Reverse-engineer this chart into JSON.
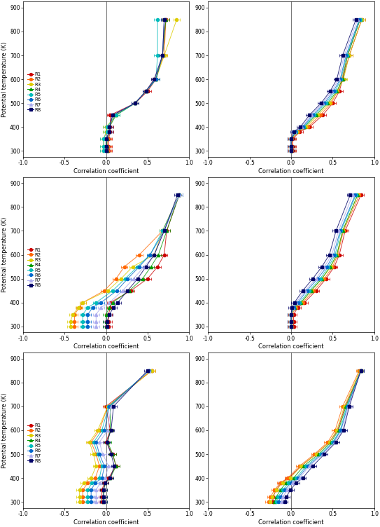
{
  "fig_width": 5.43,
  "fig_height": 7.52,
  "dpi": 100,
  "nrows": 3,
  "ncols": 2,
  "xlim": [
    -1.0,
    1.0
  ],
  "ylim": [
    275,
    925
  ],
  "yticks": [
    300,
    400,
    500,
    600,
    700,
    800,
    900
  ],
  "xticks": [
    -1.0,
    -0.5,
    0.0,
    0.5,
    1.0
  ],
  "xtick_labels": [
    "-1.0",
    "-0.5",
    "0.0",
    "0.5",
    "1.0"
  ],
  "xlabel": "Correlation coefficient",
  "ylabel": "Potential temperature (K)",
  "pot_temps": [
    300,
    320,
    350,
    380,
    400,
    450,
    500,
    550,
    600,
    700,
    850
  ],
  "series_names": [
    "R1",
    "R2",
    "R3",
    "R4",
    "R5",
    "R6",
    "R7",
    "R8"
  ],
  "series_colors": [
    "#cc0000",
    "#ff6600",
    "#ddcc00",
    "#009900",
    "#00bbbb",
    "#0066cc",
    "#aaaaee",
    "#000066"
  ],
  "marker_styles": [
    "o",
    "o",
    "o",
    "^",
    "o",
    "o",
    "^",
    "s"
  ],
  "background_color": "#ffffff",
  "linewidth": 0.7,
  "markersize": 3.0,
  "elinewidth": 0.5,
  "capsize": 1.2,
  "tick_fontsize": 5.5,
  "label_fontsize": 6.0,
  "legend_fontsize": 5.0,
  "data": {
    "panel_00": {
      "series": {
        "R1": [
          0.03,
          0.03,
          0.03,
          0.05,
          0.05,
          0.05,
          0.35,
          0.5,
          0.6,
          0.68,
          0.72
        ],
        "R2": [
          0.02,
          0.02,
          0.02,
          0.04,
          0.04,
          0.1,
          0.35,
          0.48,
          0.58,
          0.7,
          0.72
        ],
        "R3": [
          -0.03,
          -0.03,
          -0.03,
          0.0,
          0.0,
          0.12,
          0.35,
          0.48,
          0.6,
          0.7,
          0.85
        ],
        "R4": [
          0.01,
          0.01,
          0.01,
          0.04,
          0.04,
          0.12,
          0.35,
          0.48,
          0.6,
          0.68,
          0.72
        ],
        "R5": [
          -0.03,
          -0.03,
          -0.03,
          0.01,
          0.01,
          0.12,
          0.35,
          0.48,
          0.6,
          0.62,
          0.62
        ],
        "R6": [
          0.0,
          0.0,
          0.0,
          0.04,
          0.04,
          0.08,
          0.35,
          0.48,
          0.6,
          0.68,
          0.7
        ],
        "R7": [
          0.0,
          0.0,
          0.0,
          0.04,
          0.04,
          0.08,
          0.35,
          0.48,
          0.58,
          0.68,
          0.7
        ],
        "R8": [
          0.0,
          0.0,
          0.0,
          0.04,
          0.04,
          0.08,
          0.35,
          0.48,
          0.58,
          0.68,
          0.7
        ]
      }
    },
    "panel_01": {
      "series": {
        "R1": [
          0.02,
          0.02,
          0.02,
          0.1,
          0.22,
          0.38,
          0.5,
          0.58,
          0.62,
          0.7,
          0.85
        ],
        "R2": [
          0.01,
          0.01,
          0.01,
          0.08,
          0.2,
          0.35,
          0.48,
          0.56,
          0.61,
          0.68,
          0.83
        ],
        "R3": [
          0.0,
          0.0,
          0.0,
          0.07,
          0.18,
          0.32,
          0.46,
          0.56,
          0.63,
          0.7,
          0.85
        ],
        "R4": [
          0.0,
          0.0,
          0.0,
          0.06,
          0.16,
          0.3,
          0.44,
          0.55,
          0.62,
          0.68,
          0.83
        ],
        "R5": [
          0.0,
          0.0,
          0.0,
          0.06,
          0.15,
          0.28,
          0.42,
          0.53,
          0.6,
          0.67,
          0.83
        ],
        "R6": [
          0.0,
          0.0,
          0.0,
          0.05,
          0.14,
          0.26,
          0.4,
          0.51,
          0.59,
          0.66,
          0.82
        ],
        "R7": [
          0.0,
          0.0,
          0.0,
          0.04,
          0.13,
          0.24,
          0.38,
          0.49,
          0.57,
          0.64,
          0.8
        ],
        "R8": [
          0.0,
          0.0,
          0.0,
          0.03,
          0.11,
          0.22,
          0.36,
          0.47,
          0.55,
          0.62,
          0.78
        ]
      }
    },
    "panel_10": {
      "series": {
        "R1": [
          0.03,
          0.03,
          0.03,
          0.05,
          0.05,
          0.3,
          0.5,
          0.62,
          0.7,
          0.73,
          0.88
        ],
        "R2": [
          -0.38,
          -0.38,
          -0.38,
          -0.32,
          -0.28,
          -0.02,
          0.12,
          0.22,
          0.4,
          0.68,
          0.88
        ],
        "R3": [
          -0.43,
          -0.43,
          -0.4,
          -0.33,
          -0.28,
          0.02,
          0.18,
          0.32,
          0.58,
          0.68,
          0.88
        ],
        "R4": [
          0.0,
          0.0,
          0.0,
          0.04,
          0.08,
          0.28,
          0.44,
          0.54,
          0.63,
          0.73,
          0.88
        ],
        "R5": [
          -0.28,
          -0.28,
          -0.28,
          -0.22,
          -0.12,
          0.08,
          0.23,
          0.38,
          0.53,
          0.68,
          0.88
        ],
        "R6": [
          -0.22,
          -0.22,
          -0.22,
          -0.16,
          -0.06,
          0.13,
          0.26,
          0.4,
          0.53,
          0.7,
          0.88
        ],
        "R7": [
          -0.12,
          -0.12,
          -0.12,
          -0.06,
          0.04,
          0.2,
          0.33,
          0.46,
          0.58,
          0.7,
          0.88
        ],
        "R8": [
          0.01,
          0.01,
          0.04,
          0.09,
          0.14,
          0.26,
          0.38,
          0.48,
          0.58,
          0.7,
          0.86
        ]
      }
    },
    "panel_11": {
      "series": {
        "R1": [
          0.03,
          0.03,
          0.03,
          0.08,
          0.16,
          0.3,
          0.42,
          0.52,
          0.58,
          0.65,
          0.84
        ],
        "R2": [
          0.01,
          0.01,
          0.01,
          0.06,
          0.14,
          0.27,
          0.4,
          0.5,
          0.56,
          0.63,
          0.82
        ],
        "R3": [
          0.0,
          0.0,
          0.0,
          0.04,
          0.12,
          0.24,
          0.37,
          0.48,
          0.55,
          0.62,
          0.8
        ],
        "R4": [
          0.0,
          0.0,
          0.0,
          0.04,
          0.12,
          0.24,
          0.37,
          0.47,
          0.55,
          0.62,
          0.8
        ],
        "R5": [
          0.0,
          0.0,
          0.0,
          0.03,
          0.1,
          0.22,
          0.35,
          0.45,
          0.53,
          0.6,
          0.78
        ],
        "R6": [
          0.0,
          0.0,
          0.0,
          0.03,
          0.08,
          0.19,
          0.32,
          0.43,
          0.51,
          0.59,
          0.77
        ],
        "R7": [
          0.0,
          0.0,
          0.0,
          0.02,
          0.06,
          0.17,
          0.3,
          0.4,
          0.49,
          0.57,
          0.74
        ],
        "R8": [
          0.0,
          0.0,
          0.0,
          0.01,
          0.04,
          0.14,
          0.26,
          0.37,
          0.46,
          0.54,
          0.71
        ]
      }
    },
    "panel_20": {
      "series": {
        "R1": [
          -0.05,
          -0.05,
          -0.05,
          -0.02,
          0.03,
          0.12,
          0.08,
          0.0,
          0.05,
          0.0,
          0.55
        ],
        "R2": [
          -0.28,
          -0.28,
          -0.28,
          -0.22,
          -0.13,
          -0.08,
          -0.12,
          -0.18,
          -0.08,
          0.02,
          0.55
        ],
        "R3": [
          -0.32,
          -0.32,
          -0.32,
          -0.27,
          -0.18,
          -0.12,
          -0.15,
          -0.2,
          -0.1,
          0.02,
          0.55
        ],
        "R4": [
          -0.03,
          -0.03,
          -0.03,
          -0.01,
          0.05,
          0.12,
          0.08,
          0.02,
          0.05,
          0.05,
          0.52
        ],
        "R5": [
          -0.22,
          -0.22,
          -0.22,
          -0.17,
          -0.08,
          -0.05,
          -0.1,
          -0.15,
          -0.05,
          0.03,
          0.52
        ],
        "R6": [
          -0.18,
          -0.18,
          -0.18,
          -0.13,
          -0.05,
          -0.02,
          -0.08,
          -0.12,
          -0.02,
          0.04,
          0.52
        ],
        "R7": [
          -0.12,
          -0.12,
          -0.12,
          -0.07,
          -0.01,
          0.03,
          -0.04,
          -0.08,
          0.02,
          0.06,
          0.52
        ],
        "R8": [
          -0.03,
          -0.03,
          -0.03,
          -0.01,
          0.05,
          0.1,
          0.06,
          0.01,
          0.06,
          0.09,
          0.5
        ]
      }
    },
    "panel_21": {
      "series": {
        "R1": [
          -0.22,
          -0.22,
          -0.18,
          -0.12,
          -0.03,
          0.12,
          0.3,
          0.46,
          0.56,
          0.65,
          0.84
        ],
        "R2": [
          -0.27,
          -0.25,
          -0.2,
          -0.13,
          -0.04,
          0.1,
          0.28,
          0.44,
          0.53,
          0.62,
          0.82
        ],
        "R3": [
          -0.25,
          -0.23,
          -0.18,
          -0.1,
          -0.01,
          0.12,
          0.3,
          0.46,
          0.55,
          0.64,
          0.83
        ],
        "R4": [
          -0.2,
          -0.18,
          -0.13,
          -0.06,
          0.03,
          0.15,
          0.33,
          0.48,
          0.57,
          0.66,
          0.84
        ],
        "R5": [
          -0.18,
          -0.16,
          -0.1,
          -0.03,
          0.06,
          0.18,
          0.35,
          0.5,
          0.59,
          0.67,
          0.84
        ],
        "R6": [
          -0.15,
          -0.13,
          -0.08,
          0.0,
          0.08,
          0.2,
          0.37,
          0.51,
          0.6,
          0.68,
          0.84
        ],
        "R7": [
          -0.12,
          -0.1,
          -0.05,
          0.02,
          0.1,
          0.22,
          0.38,
          0.52,
          0.62,
          0.69,
          0.84
        ],
        "R8": [
          -0.08,
          -0.06,
          -0.01,
          0.06,
          0.14,
          0.26,
          0.4,
          0.54,
          0.63,
          0.7,
          0.84
        ]
      }
    }
  }
}
